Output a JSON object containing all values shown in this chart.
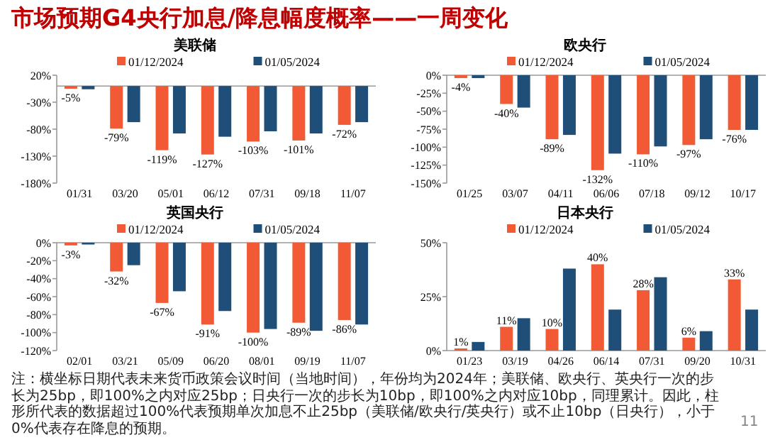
{
  "chart_data": [
    {
      "type": "other",
      "title": "市场预期G4央行加息/降息幅度概率——一周变化",
      "color": "#c00000",
      "annotations": [
        "注：横坐标日期代表未来货币政策会议时间（当地时间），年份均为2024年；美联储、欧央行、英央行一次的步长为25bp，即100%之内对应25bp；日央行一次的步长为10bp，即100%之内对应10bp，同理累计。因此，柱形所代表的数据超过100%代表预期单次加息不止25bp（美联储/欧央行/英央行）或不止10bp（日央行），小于0%代表存在降息的预期。",
        "11"
      ]
    },
    {
      "type": "bar",
      "title": "美联储",
      "legend": "top",
      "categories": [
        "01/31",
        "03/20",
        "05/01",
        "06/12",
        "07/31",
        "09/18",
        "11/07"
      ],
      "ylim": [
        -180,
        20
      ],
      "yticks": [
        {
          "value": 20,
          "label": "20%"
        },
        {
          "value": -30,
          "label": "-30%"
        },
        {
          "value": -80,
          "label": "-80%"
        },
        {
          "value": -130,
          "label": "-130%"
        },
        {
          "value": -180,
          "label": "-180%"
        }
      ],
      "series": [
        {
          "name": "01/12/2024",
          "color": "#f15a35",
          "values": [
            -5,
            -79,
            -119,
            -127,
            -103,
            -101,
            -72
          ],
          "value_labels": [
            "-5%",
            "-79%",
            "-119%",
            "-127%",
            "-103%",
            "-101%",
            "-72%"
          ]
        },
        {
          "name": "01/05/2024",
          "color": "#1f4e79",
          "values": [
            -6,
            -67,
            -88,
            -94,
            -84,
            -88,
            -67
          ]
        }
      ]
    },
    {
      "type": "bar",
      "title": "欧央行",
      "legend": "top",
      "categories": [
        "01/25",
        "03/07",
        "04/11",
        "06/06",
        "07/18",
        "09/12",
        "10/17"
      ],
      "ylim": [
        -150,
        0
      ],
      "yticks": [
        {
          "value": 0,
          "label": "0%"
        },
        {
          "value": -25,
          "label": "-25%"
        },
        {
          "value": -50,
          "label": "-50%"
        },
        {
          "value": -75,
          "label": "-75%"
        },
        {
          "value": -100,
          "label": "-100%"
        },
        {
          "value": -125,
          "label": "-125%"
        },
        {
          "value": -150,
          "label": "-150%"
        }
      ],
      "series": [
        {
          "name": "01/12/2024",
          "color": "#f15a35",
          "values": [
            -4,
            -40,
            -89,
            -132,
            -110,
            -97,
            -76
          ],
          "value_labels": [
            "-4%",
            "-40%",
            "-89%",
            "-132%",
            "-110%",
            "-97%",
            "-76%"
          ]
        },
        {
          "name": "01/05/2024",
          "color": "#1f4e79",
          "values": [
            -4,
            -45,
            -83,
            -109,
            -99,
            -89,
            -76
          ]
        }
      ]
    },
    {
      "type": "bar",
      "title": "英国央行",
      "legend": "top",
      "categories": [
        "02/01",
        "03/21",
        "05/09",
        "06/20",
        "08/01",
        "09/19",
        "11/07"
      ],
      "ylim": [
        -120,
        0
      ],
      "yticks": [
        {
          "value": 0,
          "label": "0%"
        },
        {
          "value": -20,
          "label": "-20%"
        },
        {
          "value": -40,
          "label": "-40%"
        },
        {
          "value": -60,
          "label": "-60%"
        },
        {
          "value": -80,
          "label": "-80%"
        },
        {
          "value": -100,
          "label": "-100%"
        },
        {
          "value": -120,
          "label": "-120%"
        }
      ],
      "series": [
        {
          "name": "01/12/2024",
          "color": "#f15a35",
          "values": [
            -3,
            -32,
            -67,
            -91,
            -100,
            -89,
            -86
          ],
          "value_labels": [
            "-3%",
            "-32%",
            "-67%",
            "-91%",
            "-100%",
            "-89%",
            "-86%"
          ]
        },
        {
          "name": "01/05/2024",
          "color": "#1f4e79",
          "values": [
            -2,
            -25,
            -54,
            -76,
            -96,
            -98,
            -91
          ]
        }
      ]
    },
    {
      "type": "bar",
      "title": "日本央行",
      "legend": "top",
      "categories": [
        "01/23",
        "03/19",
        "04/26",
        "06/14",
        "07/31",
        "09/20",
        "10/31"
      ],
      "ylim": [
        0,
        50
      ],
      "yticks": [
        {
          "value": 0,
          "label": "0%"
        },
        {
          "value": 25,
          "label": "25%"
        },
        {
          "value": 50,
          "label": "50%"
        }
      ],
      "series": [
        {
          "name": "01/12/2024",
          "color": "#f15a35",
          "values": [
            1,
            11,
            10,
            40,
            28,
            6,
            33
          ],
          "value_labels": [
            "1%",
            "11%",
            "10%",
            "40%",
            "28%",
            "6%",
            "33%"
          ]
        },
        {
          "name": "01/05/2024",
          "color": "#1f4e79",
          "values": [
            4,
            15,
            38,
            19,
            34,
            9,
            19
          ]
        }
      ]
    }
  ]
}
